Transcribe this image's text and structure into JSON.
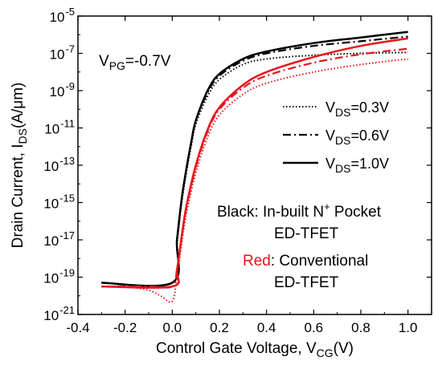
{
  "chart_data": {
    "type": "line",
    "xlabel": "Control Gate Voltage, V",
    "xlabel_sub": "CG",
    "xlabel_suffix": "(V)",
    "ylabel": "Drain Current, I",
    "ylabel_sub": "DS",
    "ylabel_suffix": "(A/μm)",
    "xlim": [
      -0.4,
      1.1
    ],
    "ylim_log10": [
      -21,
      -5
    ],
    "y_scale": "log",
    "x_ticks": [
      "-0.4",
      "-0.2",
      "0.0",
      "0.2",
      "0.4",
      "0.6",
      "0.8",
      "1.0"
    ],
    "y_tick_exponents": [
      "-21",
      "-19",
      "-17",
      "-15",
      "-13",
      "-11",
      "-9",
      "-7",
      "-5"
    ],
    "y_tick_base": "10",
    "annotation": {
      "main": "V",
      "sub": "PG",
      "rest": "=-0.7V"
    },
    "legend": [
      {
        "main": "V",
        "sub": "DS",
        "rest": "=0.3V",
        "style": "dotted"
      },
      {
        "main": "V",
        "sub": "DS",
        "rest": "=0.6V",
        "style": "dashdot"
      },
      {
        "main": "V",
        "sub": "DS",
        "rest": "=1.0V",
        "style": "solid"
      }
    ],
    "notes": {
      "black_label": "Black",
      "black_text": ": In-built N",
      "black_sup": "+",
      "black_text2": " Pocket",
      "black_line2": "ED-TFET",
      "red_label": "Red",
      "red_text": ": Conventional",
      "red_line2": "ED-TFET"
    },
    "colors": {
      "black": "#000000",
      "red": "#e8141b"
    },
    "series": [
      {
        "device": "In-built N+ Pocket ED-TFET",
        "vds": "0.3V",
        "color": "black",
        "style": "dotted",
        "points": [
          [
            -0.3,
            -19.3
          ],
          [
            0.0,
            -19.3
          ],
          [
            0.02,
            -17.2
          ],
          [
            0.04,
            -15.0
          ],
          [
            0.06,
            -13.4
          ],
          [
            0.08,
            -12.0
          ],
          [
            0.1,
            -10.8
          ],
          [
            0.15,
            -9.3
          ],
          [
            0.2,
            -8.4
          ],
          [
            0.3,
            -7.6
          ],
          [
            0.4,
            -7.3
          ],
          [
            0.6,
            -7.1
          ],
          [
            0.8,
            -7.0
          ],
          [
            1.0,
            -6.95
          ]
        ]
      },
      {
        "device": "In-built N+ Pocket ED-TFET",
        "vds": "0.6V",
        "color": "black",
        "style": "dashdot",
        "points": [
          [
            -0.3,
            -19.3
          ],
          [
            0.0,
            -19.3
          ],
          [
            0.02,
            -17.0
          ],
          [
            0.04,
            -14.8
          ],
          [
            0.06,
            -13.2
          ],
          [
            0.08,
            -11.8
          ],
          [
            0.1,
            -10.6
          ],
          [
            0.15,
            -9.1
          ],
          [
            0.2,
            -8.2
          ],
          [
            0.3,
            -7.4
          ],
          [
            0.4,
            -7.0
          ],
          [
            0.6,
            -6.6
          ],
          [
            0.8,
            -6.35
          ],
          [
            1.0,
            -6.1
          ]
        ]
      },
      {
        "device": "In-built N+ Pocket ED-TFET",
        "vds": "1.0V",
        "color": "black",
        "style": "solid",
        "points": [
          [
            -0.3,
            -19.3
          ],
          [
            0.0,
            -19.3
          ],
          [
            0.02,
            -17.0
          ],
          [
            0.04,
            -14.8
          ],
          [
            0.06,
            -13.2
          ],
          [
            0.08,
            -11.8
          ],
          [
            0.1,
            -10.6
          ],
          [
            0.15,
            -9.0
          ],
          [
            0.2,
            -8.1
          ],
          [
            0.3,
            -7.3
          ],
          [
            0.4,
            -6.9
          ],
          [
            0.6,
            -6.45
          ],
          [
            0.8,
            -6.15
          ],
          [
            1.0,
            -5.85
          ]
        ]
      },
      {
        "device": "Conventional ED-TFET",
        "vds": "0.3V",
        "color": "red",
        "style": "dotted",
        "points": [
          [
            -0.3,
            -19.5
          ],
          [
            -0.2,
            -19.5
          ],
          [
            -0.1,
            -19.7
          ],
          [
            -0.05,
            -20.0
          ],
          [
            0.0,
            -20.3
          ],
          [
            0.02,
            -19.0
          ],
          [
            0.04,
            -17.2
          ],
          [
            0.06,
            -15.6
          ],
          [
            0.1,
            -13.4
          ],
          [
            0.15,
            -11.5
          ],
          [
            0.2,
            -10.3
          ],
          [
            0.3,
            -9.2
          ],
          [
            0.4,
            -8.6
          ],
          [
            0.6,
            -8.0
          ],
          [
            0.8,
            -7.6
          ],
          [
            1.0,
            -7.3
          ]
        ]
      },
      {
        "device": "Conventional ED-TFET",
        "vds": "0.6V",
        "color": "red",
        "style": "dashdot",
        "points": [
          [
            -0.3,
            -19.5
          ],
          [
            -0.1,
            -19.5
          ],
          [
            0.0,
            -19.5
          ],
          [
            0.02,
            -18.6
          ],
          [
            0.04,
            -16.9
          ],
          [
            0.06,
            -15.3
          ],
          [
            0.1,
            -13.1
          ],
          [
            0.15,
            -11.2
          ],
          [
            0.2,
            -10.0
          ],
          [
            0.3,
            -8.85
          ],
          [
            0.4,
            -8.2
          ],
          [
            0.6,
            -7.5
          ],
          [
            0.8,
            -7.05
          ],
          [
            1.0,
            -6.75
          ]
        ]
      },
      {
        "device": "Conventional ED-TFET",
        "vds": "1.0V",
        "color": "red",
        "style": "solid",
        "points": [
          [
            -0.3,
            -19.5
          ],
          [
            0.0,
            -19.5
          ],
          [
            0.02,
            -18.6
          ],
          [
            0.04,
            -16.8
          ],
          [
            0.06,
            -15.2
          ],
          [
            0.1,
            -13.0
          ],
          [
            0.15,
            -11.1
          ],
          [
            0.2,
            -9.9
          ],
          [
            0.3,
            -8.7
          ],
          [
            0.4,
            -8.0
          ],
          [
            0.6,
            -7.2
          ],
          [
            0.8,
            -6.6
          ],
          [
            1.0,
            -6.2
          ]
        ]
      }
    ]
  }
}
